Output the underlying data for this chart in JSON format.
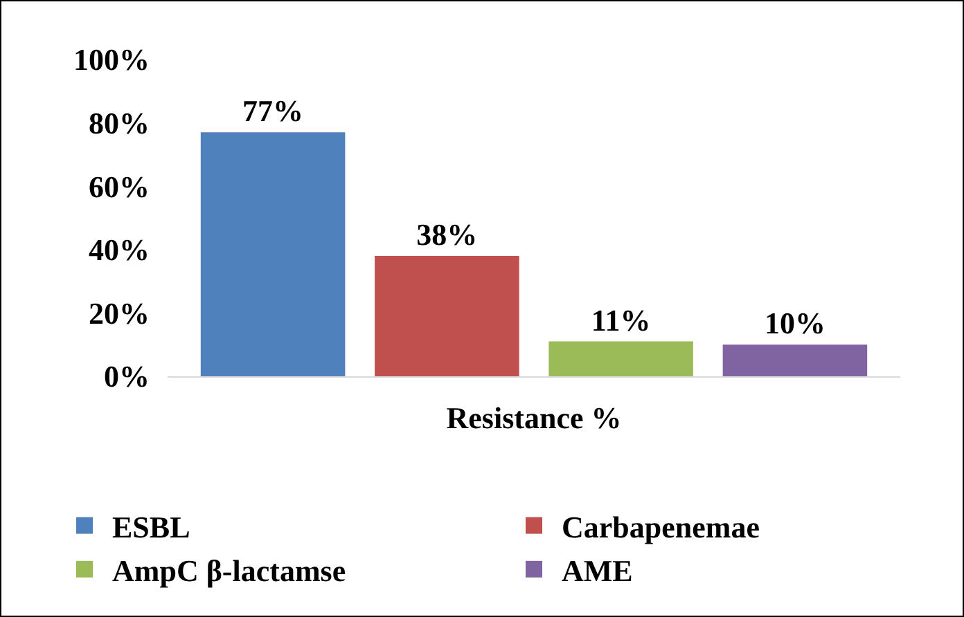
{
  "chart_data": {
    "type": "bar",
    "categories": [
      "Resistance %"
    ],
    "series": [
      {
        "name": "ESBL",
        "color": "#4f81bd",
        "values": [
          77
        ],
        "value_labels": [
          "77%"
        ]
      },
      {
        "name": "Carbapenemae",
        "color": "#c0504d",
        "values": [
          38
        ],
        "value_labels": [
          "38%"
        ]
      },
      {
        "name": "AmpC β-lactamse",
        "color": "#9bbb59",
        "values": [
          11
        ],
        "value_labels": [
          "11%"
        ]
      },
      {
        "name": "AME",
        "color": "#8064a2",
        "values": [
          10
        ],
        "value_labels": [
          "10%"
        ]
      }
    ],
    "ylim": [
      0,
      100
    ],
    "yticks": [
      {
        "value": 0,
        "label": "0%"
      },
      {
        "value": 20,
        "label": "20%"
      },
      {
        "value": 40,
        "label": "40%"
      },
      {
        "value": 60,
        "label": "60%"
      },
      {
        "value": 80,
        "label": "80%"
      },
      {
        "value": 100,
        "label": "100%"
      }
    ],
    "grid": false,
    "legend": "bottom"
  }
}
